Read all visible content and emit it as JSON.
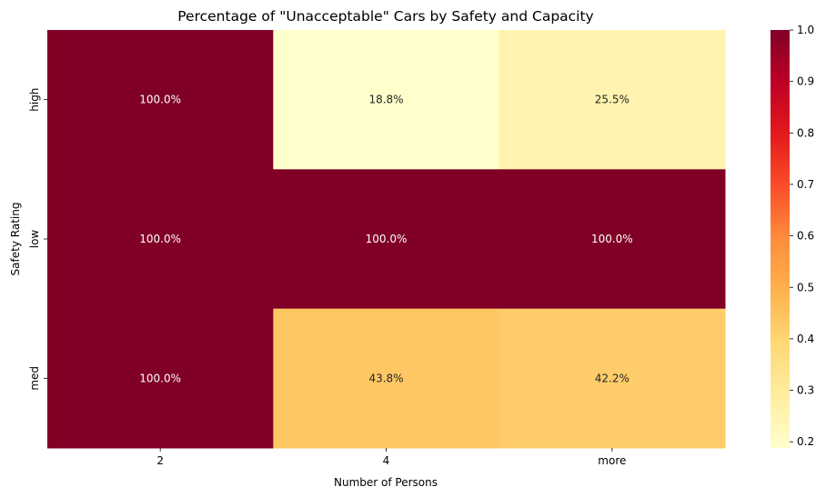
{
  "chart_data": {
    "type": "heatmap",
    "title": "Percentage of \"Unacceptable\" Cars by Safety and Capacity",
    "xlabel": "Number of Persons",
    "ylabel": "Safety Rating",
    "x_categories": [
      "2",
      "4",
      "more"
    ],
    "y_categories": [
      "high",
      "low",
      "med"
    ],
    "values": [
      [
        1.0,
        0.188,
        0.255
      ],
      [
        1.0,
        1.0,
        1.0
      ],
      [
        1.0,
        0.438,
        0.422
      ]
    ],
    "cell_labels": [
      [
        "100.0%",
        "18.8%",
        "25.5%"
      ],
      [
        "100.0%",
        "100.0%",
        "100.0%"
      ],
      [
        "100.0%",
        "43.8%",
        "42.2%"
      ]
    ],
    "colormap": "YlOrRd",
    "colorbar": {
      "range": [
        0.188,
        1.0
      ],
      "ticks": [
        0.2,
        0.3,
        0.4,
        0.5,
        0.6,
        0.7,
        0.8,
        0.9,
        1.0
      ],
      "tick_labels": [
        "0.2",
        "0.3",
        "0.4",
        "0.5",
        "0.6",
        "0.7",
        "0.8",
        "0.9",
        "1.0"
      ]
    },
    "legend_placement": "right"
  }
}
